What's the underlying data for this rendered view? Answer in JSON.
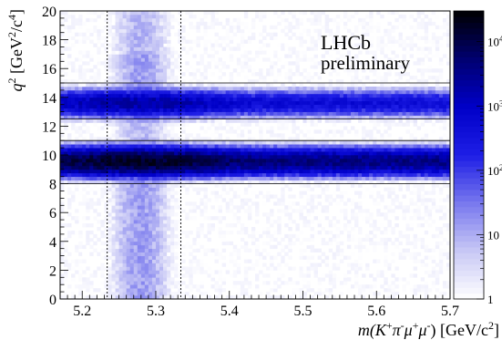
{
  "chart_data": {
    "type": "heatmap",
    "title": "",
    "annotation_lines": [
      "LHCb",
      "preliminary"
    ],
    "xlabel": {
      "main": "m(K",
      "sup1": "+",
      "pi": "π",
      "sup2": "-",
      "mu1": "μ",
      "sup3": "+",
      "mu2": "μ",
      "sup4": "-",
      "tail": ") [GeV/c",
      "sup5": "2",
      "end": "]"
    },
    "ylabel": {
      "q": "q",
      "qsup": "2",
      "unit": " [GeV",
      "usup": "2",
      "slash": "/c",
      "csup": "4",
      "end": "]"
    },
    "xlim": [
      5.17,
      5.7
    ],
    "ylim": [
      0,
      20
    ],
    "x_ticks": [
      5.2,
      5.3,
      5.4,
      5.5,
      5.6,
      5.7
    ],
    "x_tick_labels": [
      "5.2",
      "5.3",
      "5.4",
      "5.5",
      "5.6",
      "5.7"
    ],
    "y_ticks": [
      0,
      2,
      4,
      6,
      8,
      10,
      12,
      14,
      16,
      18,
      20
    ],
    "y_tick_labels": [
      "0",
      "2",
      "4",
      "6",
      "8",
      "10",
      "12",
      "14",
      "16",
      "18",
      "20"
    ],
    "z_scale": "log",
    "zlim": [
      1,
      30000
    ],
    "z_ticks": [
      1,
      10,
      100,
      1000,
      10000
    ],
    "z_tick_labels": [
      {
        "base": "1",
        "exp": ""
      },
      {
        "base": "10",
        "exp": ""
      },
      {
        "base": "10",
        "exp": "2"
      },
      {
        "base": "10",
        "exp": "3"
      },
      {
        "base": "10",
        "exp": "4"
      }
    ],
    "colormap": [
      "#ffffff",
      "#c8c8f5",
      "#7878ee",
      "#1e1ee6",
      "#0000c8",
      "#000070",
      "#000000"
    ],
    "vertical_dashed_lines_x": [
      5.234,
      5.334
    ],
    "horizontal_lines_y": [
      8.0,
      11.0,
      12.5,
      15.0
    ],
    "bins": {
      "nx": 106,
      "ny": 80
    },
    "bands": [
      {
        "label": "J/psi",
        "q2_center": 9.55,
        "q2_width": 0.35,
        "peak_density": 22000
      },
      {
        "label": "psi(2S)",
        "q2_center": 13.6,
        "q2_width": 0.35,
        "peak_density": 2500
      }
    ],
    "signal_peak": {
      "mass": 5.28,
      "mass_width": 0.018,
      "density": 15
    }
  }
}
